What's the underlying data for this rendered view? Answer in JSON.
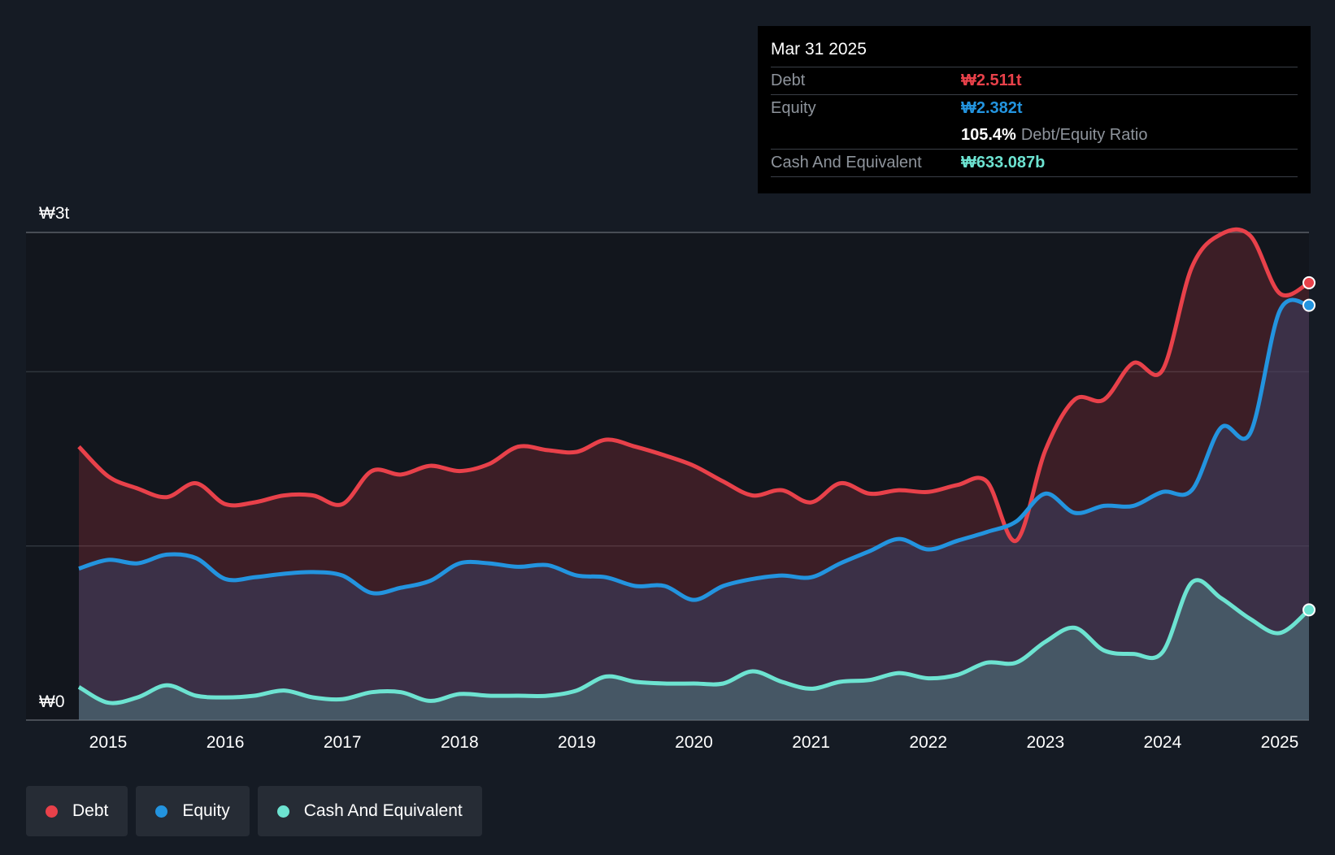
{
  "tooltip": {
    "date": "Mar 31 2025",
    "debt_label": "Debt",
    "debt_value": "₩2.511t",
    "equity_label": "Equity",
    "equity_value": "₩2.382t",
    "ratio_value": "105.4%",
    "ratio_label": "Debt/Equity Ratio",
    "cash_label": "Cash And Equivalent",
    "cash_value": "₩633.087b"
  },
  "legend": {
    "debt": "Debt",
    "equity": "Equity",
    "cash": "Cash And Equivalent"
  },
  "colors": {
    "background": "#151b24",
    "debt": "#e8414a",
    "equity": "#2394df",
    "cash": "#6de3d1",
    "grid": "#2f353d"
  },
  "chart_data": {
    "type": "area",
    "title": "",
    "xlabel": "",
    "ylabel": "",
    "y_unit": "₩ trillion",
    "ylim": [
      0,
      2.8
    ],
    "y_tick_labels": [
      {
        "value": 0,
        "label": "₩0"
      },
      {
        "value": 2.8,
        "label": "₩3t"
      }
    ],
    "x_ticks": [
      2015,
      2016,
      2017,
      2018,
      2019,
      2020,
      2021,
      2022,
      2023,
      2024,
      2025
    ],
    "x": [
      2014.75,
      2015.0,
      2015.25,
      2015.5,
      2015.75,
      2016.0,
      2016.25,
      2016.5,
      2016.75,
      2017.0,
      2017.25,
      2017.5,
      2017.75,
      2018.0,
      2018.25,
      2018.5,
      2018.75,
      2019.0,
      2019.25,
      2019.5,
      2019.75,
      2020.0,
      2020.25,
      2020.5,
      2020.75,
      2021.0,
      2021.25,
      2021.5,
      2021.75,
      2022.0,
      2022.25,
      2022.5,
      2022.75,
      2023.0,
      2023.25,
      2023.5,
      2023.75,
      2024.0,
      2024.25,
      2024.5,
      2024.75,
      2025.0,
      2025.25
    ],
    "series": [
      {
        "name": "Debt",
        "values": [
          1.57,
          1.4,
          1.33,
          1.28,
          1.36,
          1.24,
          1.25,
          1.29,
          1.29,
          1.24,
          1.43,
          1.41,
          1.46,
          1.43,
          1.47,
          1.57,
          1.55,
          1.54,
          1.61,
          1.57,
          1.52,
          1.46,
          1.37,
          1.29,
          1.32,
          1.25,
          1.36,
          1.3,
          1.32,
          1.31,
          1.35,
          1.37,
          1.03,
          1.55,
          1.84,
          1.84,
          2.05,
          2.01,
          2.6,
          2.79,
          2.78,
          2.45,
          2.511
        ]
      },
      {
        "name": "Equity",
        "values": [
          0.87,
          0.92,
          0.9,
          0.95,
          0.93,
          0.81,
          0.82,
          0.84,
          0.85,
          0.83,
          0.73,
          0.76,
          0.8,
          0.9,
          0.9,
          0.88,
          0.89,
          0.83,
          0.82,
          0.77,
          0.77,
          0.69,
          0.77,
          0.81,
          0.83,
          0.82,
          0.9,
          0.97,
          1.04,
          0.98,
          1.03,
          1.08,
          1.14,
          1.3,
          1.19,
          1.23,
          1.23,
          1.31,
          1.32,
          1.68,
          1.65,
          2.35,
          2.382
        ]
      },
      {
        "name": "Cash And Equivalent",
        "values": [
          0.19,
          0.1,
          0.13,
          0.2,
          0.14,
          0.13,
          0.14,
          0.17,
          0.13,
          0.12,
          0.16,
          0.16,
          0.11,
          0.15,
          0.14,
          0.14,
          0.14,
          0.17,
          0.25,
          0.22,
          0.21,
          0.21,
          0.21,
          0.28,
          0.22,
          0.18,
          0.22,
          0.23,
          0.27,
          0.24,
          0.26,
          0.33,
          0.33,
          0.45,
          0.53,
          0.4,
          0.38,
          0.39,
          0.79,
          0.7,
          0.58,
          0.5,
          0.633
        ]
      }
    ]
  }
}
